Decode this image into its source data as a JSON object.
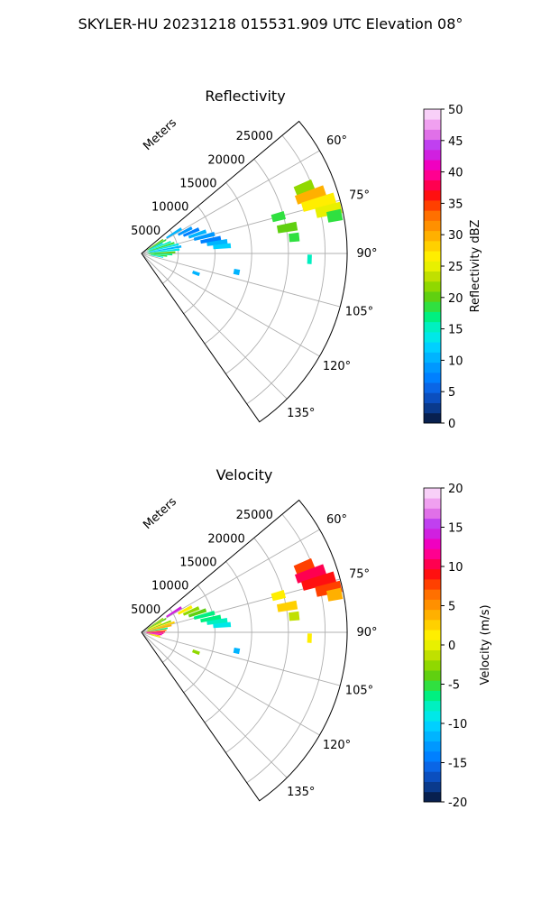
{
  "suptitle": "SKYLER-HU  20231218  015531.909 UTC Elevation 08°",
  "colors": {
    "grid": "#b0b0b0",
    "frame": "#000000",
    "background": "#ffffff"
  },
  "chart_data": [
    {
      "type": "polar-sector",
      "title": "Reflectivity",
      "radial_label": "Meters",
      "radial_ticks": [
        "5000",
        "10000",
        "15000",
        "20000",
        "25000"
      ],
      "radial_tick_values": [
        5000,
        10000,
        15000,
        20000,
        25000
      ],
      "r_max": 28000,
      "angle_ticks": [
        "60°",
        "75°",
        "90°",
        "105°",
        "120°",
        "135°"
      ],
      "angle_tick_values": [
        60,
        75,
        90,
        105,
        120,
        135
      ],
      "angle_range": [
        50,
        145
      ],
      "colorbar": {
        "label": "Reflectivity dBZ",
        "ticks": [
          "0",
          "5",
          "10",
          "15",
          "20",
          "25",
          "30",
          "35",
          "40",
          "45",
          "50"
        ],
        "range": [
          0,
          50
        ],
        "colors": [
          "#08204f",
          "#0a3a8c",
          "#0b4fbf",
          "#0a66e6",
          "#0080ff",
          "#0098ff",
          "#00b4ff",
          "#00d0ff",
          "#00e8e8",
          "#00f0c0",
          "#00f080",
          "#30e040",
          "#60d010",
          "#90d800",
          "#c0e000",
          "#e8f000",
          "#ffee00",
          "#ffd000",
          "#ffb000",
          "#ff9000",
          "#ff7000",
          "#ff4000",
          "#ff1010",
          "#ff0050",
          "#ff0090",
          "#f000c0",
          "#d020e0",
          "#c040f0",
          "#e070e8",
          "#f0a0f0",
          "#f8d0f8"
        ]
      },
      "echoes": [
        {
          "az": 57,
          "r0": 900,
          "r1": 3500,
          "v": 20
        },
        {
          "az": 61,
          "r0": 1000,
          "r1": 3800,
          "v": 18
        },
        {
          "az": 64,
          "r0": 1200,
          "r1": 3200,
          "v": 12
        },
        {
          "az": 68,
          "r0": 800,
          "r1": 4300,
          "v": 16
        },
        {
          "az": 72,
          "r0": 1000,
          "r1": 4700,
          "v": 19
        },
        {
          "az": 76,
          "r0": 900,
          "r1": 5200,
          "v": 14
        },
        {
          "az": 80,
          "r0": 1100,
          "r1": 5500,
          "v": 11
        },
        {
          "az": 84,
          "r0": 800,
          "r1": 5200,
          "v": 13
        },
        {
          "az": 88,
          "r0": 900,
          "r1": 4600,
          "v": 20
        },
        {
          "az": 92,
          "r0": 1200,
          "r1": 4200,
          "v": 17
        },
        {
          "az": 96,
          "r0": 1000,
          "r1": 3500,
          "v": 19
        },
        {
          "az": 100,
          "r0": 1300,
          "r1": 3000,
          "v": 14
        },
        {
          "az": 58,
          "r0": 4000,
          "r1": 6400,
          "v": 10
        },
        {
          "az": 63,
          "r0": 5600,
          "r1": 7700,
          "v": 9
        },
        {
          "az": 67,
          "r0": 6200,
          "r1": 8500,
          "v": 8
        },
        {
          "az": 71,
          "r0": 6800,
          "r1": 9300,
          "v": 10
        },
        {
          "az": 75,
          "r0": 7400,
          "r1": 10300,
          "v": 9
        },
        {
          "az": 79,
          "r0": 8200,
          "r1": 11000,
          "v": 8
        },
        {
          "az": 82,
          "r0": 9000,
          "r1": 11800,
          "v": 10
        },
        {
          "az": 85,
          "r0": 9800,
          "r1": 12200,
          "v": 12
        },
        {
          "az": 110,
          "r0": 7400,
          "r1": 8400,
          "v": 10
        },
        {
          "az": 101,
          "r0": 12800,
          "r1": 13600,
          "v": 11
        },
        {
          "az": 75,
          "r0": 18400,
          "r1": 20200,
          "v": 19
        },
        {
          "az": 80,
          "r0": 18800,
          "r1": 21500,
          "v": 20
        },
        {
          "az": 84,
          "r0": 20200,
          "r1": 21600,
          "v": 18
        },
        {
          "az": 68,
          "r0": 22600,
          "r1": 25200,
          "v": 22
        },
        {
          "az": 71,
          "r0": 22300,
          "r1": 26400,
          "v": 30
        },
        {
          "az": 74,
          "r0": 22800,
          "r1": 27400,
          "v": 27
        },
        {
          "az": 77,
          "r0": 24400,
          "r1": 27900,
          "v": 25
        },
        {
          "az": 79,
          "r0": 25800,
          "r1": 27800,
          "v": 19
        },
        {
          "az": 92,
          "r0": 22600,
          "r1": 23200,
          "v": 16
        }
      ]
    },
    {
      "type": "polar-sector",
      "title": "Velocity",
      "radial_label": "Meters",
      "radial_ticks": [
        "5000",
        "10000",
        "15000",
        "20000",
        "25000"
      ],
      "radial_tick_values": [
        5000,
        10000,
        15000,
        20000,
        25000
      ],
      "r_max": 28000,
      "angle_ticks": [
        "60°",
        "75°",
        "90°",
        "105°",
        "120°",
        "135°"
      ],
      "angle_tick_values": [
        60,
        75,
        90,
        105,
        120,
        135
      ],
      "angle_range": [
        50,
        145
      ],
      "colorbar": {
        "label": "Velocity (m/s)",
        "ticks": [
          "-20",
          "-15",
          "-10",
          "-5",
          "0",
          "5",
          "10",
          "15",
          "20"
        ],
        "range": [
          -20,
          20
        ],
        "colors": [
          "#08204f",
          "#0a3a8c",
          "#0b4fbf",
          "#0a66e6",
          "#0080ff",
          "#0098ff",
          "#00b4ff",
          "#00d0ff",
          "#00e8e8",
          "#00f0c0",
          "#00f080",
          "#30e040",
          "#60d010",
          "#90d800",
          "#c0e000",
          "#e8f000",
          "#ffee00",
          "#ffd000",
          "#ffb000",
          "#ff9000",
          "#ff7000",
          "#ff4000",
          "#ff1010",
          "#ff0050",
          "#ff0090",
          "#f000c0",
          "#d020e0",
          "#c040f0",
          "#e070e8",
          "#f0a0f0",
          "#f8d0f8"
        ]
      },
      "echoes": [
        {
          "az": 57,
          "r0": 900,
          "r1": 3500,
          "v": -3
        },
        {
          "az": 61,
          "r0": 1000,
          "r1": 3800,
          "v": -4
        },
        {
          "az": 65,
          "r0": 1000,
          "r1": 3000,
          "v": 1
        },
        {
          "az": 69,
          "r0": 800,
          "r1": 4300,
          "v": -2
        },
        {
          "az": 73,
          "r0": 900,
          "r1": 4700,
          "v": 2
        },
        {
          "az": 77,
          "r0": 800,
          "r1": 4200,
          "v": 4
        },
        {
          "az": 81,
          "r0": 700,
          "r1": 3600,
          "v": -6
        },
        {
          "az": 85,
          "r0": 600,
          "r1": 3400,
          "v": 6
        },
        {
          "az": 89,
          "r0": 500,
          "r1": 3200,
          "v": 10
        },
        {
          "az": 93,
          "r0": 600,
          "r1": 3000,
          "v": 11
        },
        {
          "az": 97,
          "r0": 700,
          "r1": 2800,
          "v": 13
        },
        {
          "az": 101,
          "r0": 800,
          "r1": 2600,
          "v": 4
        },
        {
          "az": 105,
          "r0": 1200,
          "r1": 2600,
          "v": 0
        },
        {
          "az": 58,
          "r0": 4000,
          "r1": 6400,
          "v": 14
        },
        {
          "az": 63,
          "r0": 5600,
          "r1": 7700,
          "v": 1
        },
        {
          "az": 67,
          "r0": 6200,
          "r1": 8500,
          "v": -2
        },
        {
          "az": 71,
          "r0": 6800,
          "r1": 9300,
          "v": -4
        },
        {
          "az": 75,
          "r0": 7400,
          "r1": 10300,
          "v": -6
        },
        {
          "az": 79,
          "r0": 8200,
          "r1": 11000,
          "v": -7
        },
        {
          "az": 82,
          "r0": 9000,
          "r1": 11800,
          "v": -8
        },
        {
          "az": 85,
          "r0": 9800,
          "r1": 12200,
          "v": -9
        },
        {
          "az": 110,
          "r0": 7400,
          "r1": 8400,
          "v": -2
        },
        {
          "az": 101,
          "r0": 12800,
          "r1": 13600,
          "v": -11
        },
        {
          "az": 75,
          "r0": 18400,
          "r1": 20200,
          "v": 1
        },
        {
          "az": 80,
          "r0": 18800,
          "r1": 21500,
          "v": 3
        },
        {
          "az": 84,
          "r0": 20200,
          "r1": 21600,
          "v": -1
        },
        {
          "az": 68,
          "r0": 22600,
          "r1": 25200,
          "v": 8
        },
        {
          "az": 71,
          "r0": 22300,
          "r1": 26400,
          "v": 10
        },
        {
          "az": 74,
          "r0": 22800,
          "r1": 27400,
          "v": 9
        },
        {
          "az": 77,
          "r0": 24400,
          "r1": 27900,
          "v": 8
        },
        {
          "az": 79,
          "r0": 25800,
          "r1": 27800,
          "v": 4
        },
        {
          "az": 92,
          "r0": 22600,
          "r1": 23200,
          "v": 1
        }
      ]
    }
  ]
}
